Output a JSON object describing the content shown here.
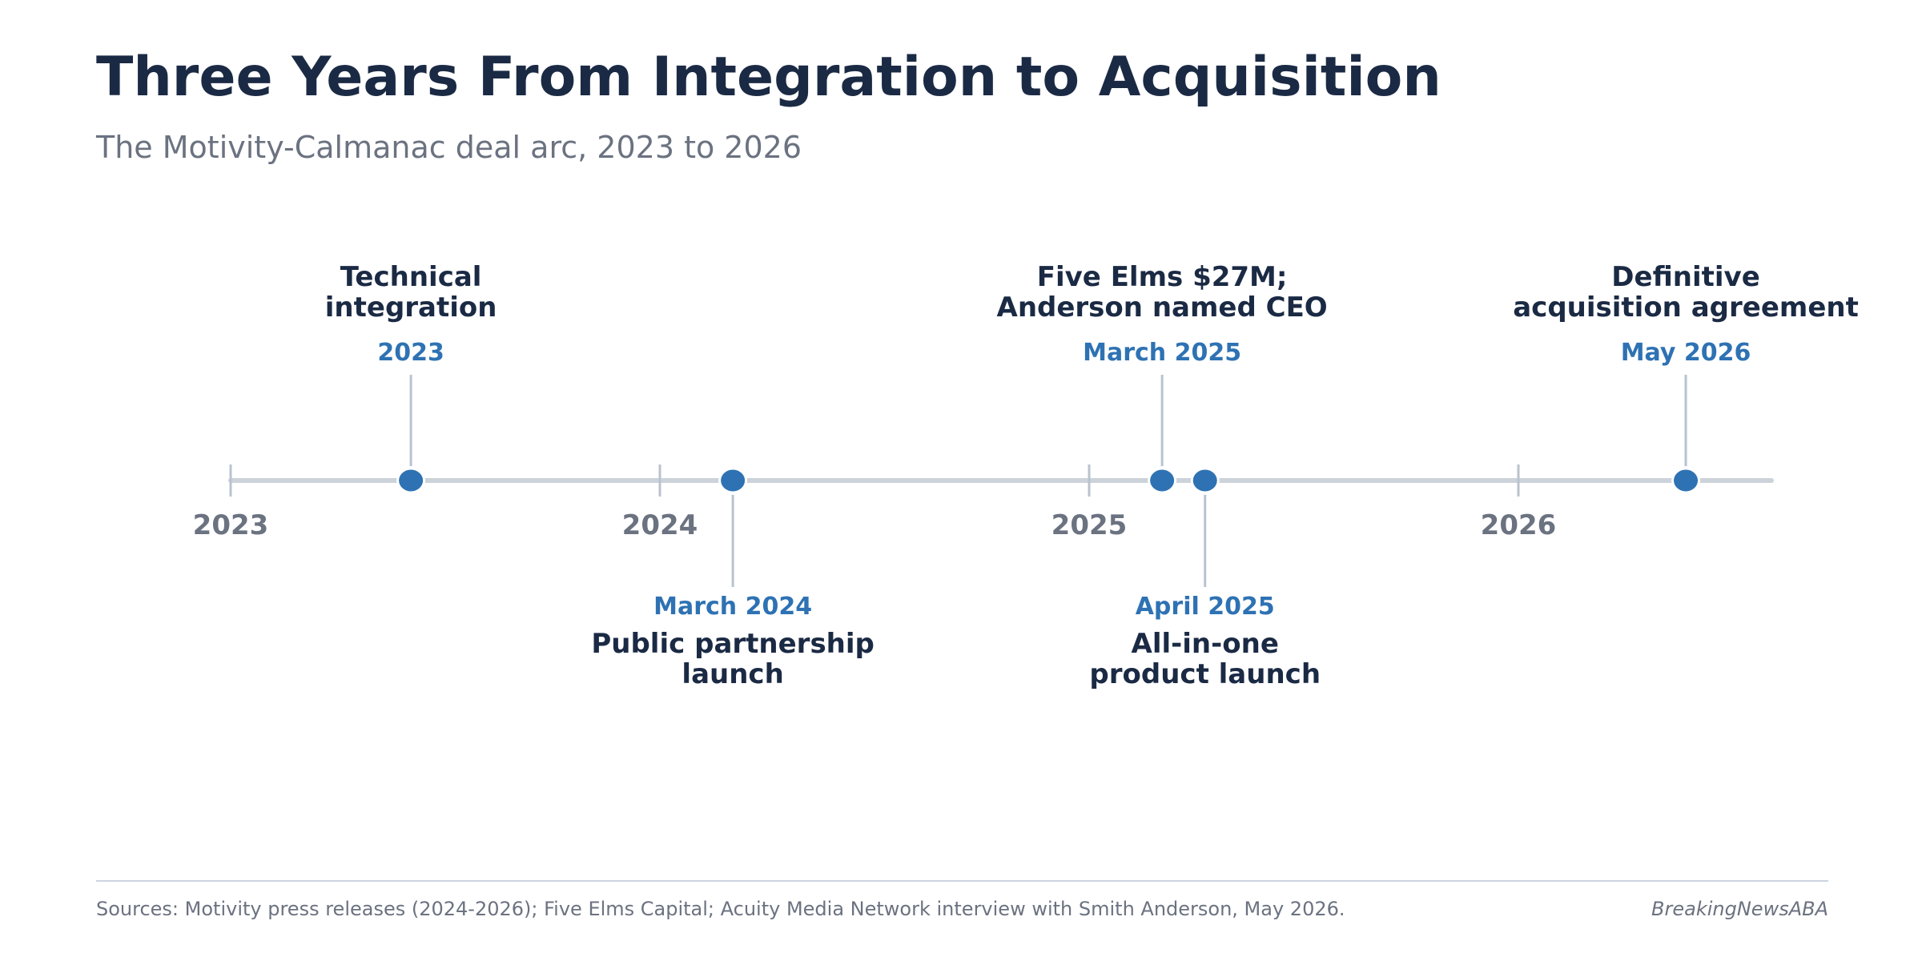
{
  "header": {
    "title": "Three Years From Integration to Acquisition",
    "subtitle": "The Motivity-Calmanac deal arc, 2023 to 2026"
  },
  "colors": {
    "title": "#1b2a44",
    "accent": "#2e72b3",
    "muted": "#6b7280",
    "axis": "#cdd3da",
    "stem": "#b9c3cf"
  },
  "timeline": {
    "axis_years": [
      "2023",
      "2024",
      "2025",
      "2026"
    ],
    "events": [
      {
        "date_label": "2023",
        "lines": [
          "Technical",
          "integration"
        ],
        "position": "above",
        "date_value": 2023.42
      },
      {
        "date_label": "March 2024",
        "lines": [
          "Public partnership",
          "launch"
        ],
        "position": "below",
        "date_value": 2024.17
      },
      {
        "date_label": "March 2025",
        "lines": [
          "Five Elms $27M;",
          "Anderson named CEO"
        ],
        "position": "above",
        "date_value": 2025.17
      },
      {
        "date_label": "April 2025",
        "lines": [
          "All-in-one",
          "product launch"
        ],
        "position": "below",
        "date_value": 2025.27
      },
      {
        "date_label": "May 2026",
        "lines": [
          "Definitive",
          "acquisition agreement"
        ],
        "position": "above",
        "date_value": 2026.39
      }
    ]
  },
  "footer": {
    "source": "Sources: Motivity press releases (2024-2026); Five Elms Capital; Acuity Media Network interview with Smith Anderson, May 2026.",
    "brand": "BreakingNewsABA"
  }
}
